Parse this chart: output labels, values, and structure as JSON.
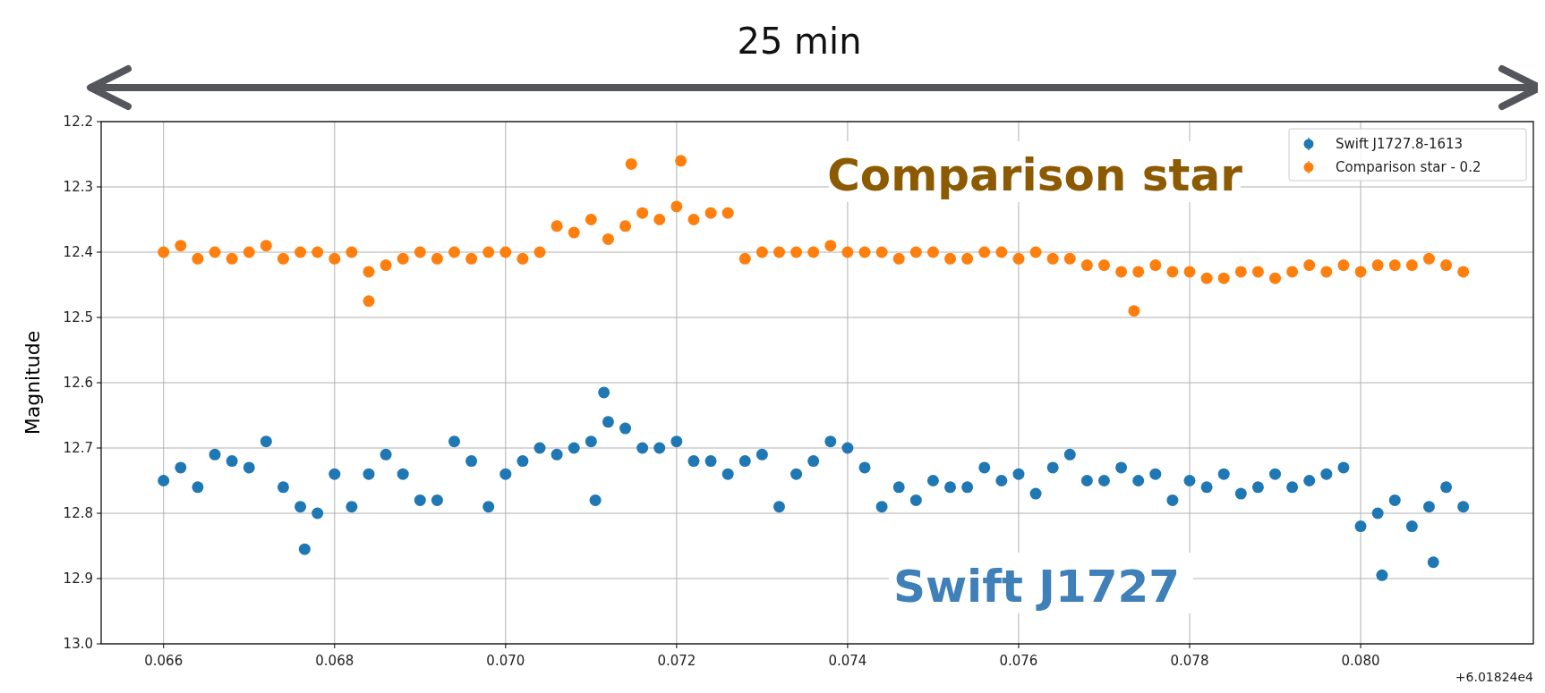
{
  "chart_data": {
    "type": "scatter",
    "ylabel": "Magnitude",
    "annotations": [
      "25 min",
      "Comparison star",
      "Swift J1727",
      "+6.01824e4"
    ],
    "xlim": [
      0.06527,
      0.08202
    ],
    "xticks": [
      {
        "value": 0.066,
        "label": "0.066"
      },
      {
        "value": 0.068,
        "label": "0.068"
      },
      {
        "value": 0.07,
        "label": "0.070"
      },
      {
        "value": 0.072,
        "label": "0.072"
      },
      {
        "value": 0.074,
        "label": "0.074"
      },
      {
        "value": 0.076,
        "label": "0.076"
      },
      {
        "value": 0.078,
        "label": "0.078"
      },
      {
        "value": 0.08,
        "label": "0.080"
      }
    ],
    "ylim": [
      13.0,
      12.2
    ],
    "yticks": [
      {
        "value": 12.2,
        "label": "12.2"
      },
      {
        "value": 12.3,
        "label": "12.3"
      },
      {
        "value": 12.4,
        "label": "12.4"
      },
      {
        "value": 12.5,
        "label": "12.5"
      },
      {
        "value": 12.6,
        "label": "12.6"
      },
      {
        "value": 12.7,
        "label": "12.7"
      },
      {
        "value": 12.8,
        "label": "12.8"
      },
      {
        "value": 12.9,
        "label": "12.9"
      },
      {
        "value": 13.0,
        "label": "13.0"
      }
    ],
    "grid": true,
    "legend": "top right",
    "marker": "circle",
    "series": [
      {
        "name": "Swift J1727.8-1613",
        "color": "#1f77b4",
        "x": [
          0.066,
          0.0662,
          0.0664,
          0.0666,
          0.0668,
          0.067,
          0.0672,
          0.0674,
          0.0676,
          0.0678,
          0.068,
          0.0682,
          0.0684,
          0.0686,
          0.0688,
          0.069,
          0.0692,
          0.0694,
          0.0696,
          0.0698,
          0.07,
          0.0702,
          0.0704,
          0.0706,
          0.0708,
          0.071,
          0.0712,
          0.0714,
          0.0716,
          0.0718,
          0.072,
          0.0722,
          0.0724,
          0.0726,
          0.0728,
          0.073,
          0.0732,
          0.0734,
          0.0736,
          0.0738,
          0.074,
          0.0742,
          0.0744,
          0.0746,
          0.0748,
          0.075,
          0.0752,
          0.0754,
          0.0756,
          0.0758,
          0.076,
          0.0762,
          0.0764,
          0.0766,
          0.0768,
          0.077,
          0.0772,
          0.0774,
          0.0776,
          0.0778,
          0.078,
          0.0782,
          0.0784,
          0.0786,
          0.0788,
          0.079,
          0.0792,
          0.0794,
          0.0796,
          0.0798,
          0.08,
          0.0802,
          0.0804,
          0.0806,
          0.0808,
          0.081,
          0.0812,
          0.06765,
          0.08025,
          0.08085,
          0.07105,
          0.07115
        ],
        "values": [
          12.75,
          12.73,
          12.76,
          12.71,
          12.72,
          12.73,
          12.69,
          12.76,
          12.79,
          12.8,
          12.74,
          12.79,
          12.74,
          12.71,
          12.74,
          12.78,
          12.78,
          12.69,
          12.72,
          12.79,
          12.74,
          12.72,
          12.7,
          12.71,
          12.7,
          12.69,
          12.66,
          12.67,
          12.7,
          12.7,
          12.69,
          12.72,
          12.72,
          12.74,
          12.72,
          12.71,
          12.79,
          12.74,
          12.72,
          12.69,
          12.7,
          12.73,
          12.79,
          12.76,
          12.78,
          12.75,
          12.76,
          12.76,
          12.73,
          12.75,
          12.74,
          12.77,
          12.73,
          12.71,
          12.75,
          12.75,
          12.73,
          12.75,
          12.74,
          12.78,
          12.75,
          12.76,
          12.74,
          12.77,
          12.76,
          12.74,
          12.76,
          12.75,
          12.74,
          12.73,
          12.82,
          12.8,
          12.78,
          12.82,
          12.79,
          12.76,
          12.79,
          12.855,
          12.895,
          12.875,
          12.78,
          12.615
        ]
      },
      {
        "name": "Comparison star - 0.2",
        "color": "#ff7f0e",
        "x": [
          0.066,
          0.0662,
          0.0664,
          0.0666,
          0.0668,
          0.067,
          0.0672,
          0.0674,
          0.0676,
          0.0678,
          0.068,
          0.0682,
          0.0684,
          0.0686,
          0.0688,
          0.069,
          0.0692,
          0.0694,
          0.0696,
          0.0698,
          0.07,
          0.0702,
          0.0704,
          0.0706,
          0.0708,
          0.071,
          0.0712,
          0.0714,
          0.0716,
          0.0718,
          0.072,
          0.0722,
          0.0724,
          0.0726,
          0.0728,
          0.073,
          0.0732,
          0.0734,
          0.0736,
          0.0738,
          0.074,
          0.0742,
          0.0744,
          0.0746,
          0.0748,
          0.075,
          0.0752,
          0.0754,
          0.0756,
          0.0758,
          0.076,
          0.0762,
          0.0764,
          0.0766,
          0.0768,
          0.077,
          0.0772,
          0.0774,
          0.0776,
          0.0778,
          0.078,
          0.0782,
          0.0784,
          0.0786,
          0.0788,
          0.079,
          0.0792,
          0.0794,
          0.0796,
          0.0798,
          0.08,
          0.0802,
          0.0804,
          0.0806,
          0.0808,
          0.081,
          0.0812,
          0.07147,
          0.07205,
          0.07735,
          0.0684
        ],
        "values": [
          12.4,
          12.39,
          12.41,
          12.4,
          12.41,
          12.4,
          12.39,
          12.41,
          12.4,
          12.4,
          12.41,
          12.4,
          12.43,
          12.42,
          12.41,
          12.4,
          12.41,
          12.4,
          12.41,
          12.4,
          12.4,
          12.41,
          12.4,
          12.36,
          12.37,
          12.35,
          12.38,
          12.36,
          12.34,
          12.35,
          12.33,
          12.35,
          12.34,
          12.34,
          12.41,
          12.4,
          12.4,
          12.4,
          12.4,
          12.39,
          12.4,
          12.4,
          12.4,
          12.41,
          12.4,
          12.4,
          12.41,
          12.41,
          12.4,
          12.4,
          12.41,
          12.4,
          12.41,
          12.41,
          12.42,
          12.42,
          12.43,
          12.43,
          12.42,
          12.43,
          12.43,
          12.44,
          12.44,
          12.43,
          12.43,
          12.44,
          12.43,
          12.42,
          12.43,
          12.42,
          12.43,
          12.42,
          12.42,
          12.42,
          12.41,
          12.42,
          12.43,
          12.265,
          12.26,
          12.49,
          12.475
        ]
      }
    ]
  }
}
